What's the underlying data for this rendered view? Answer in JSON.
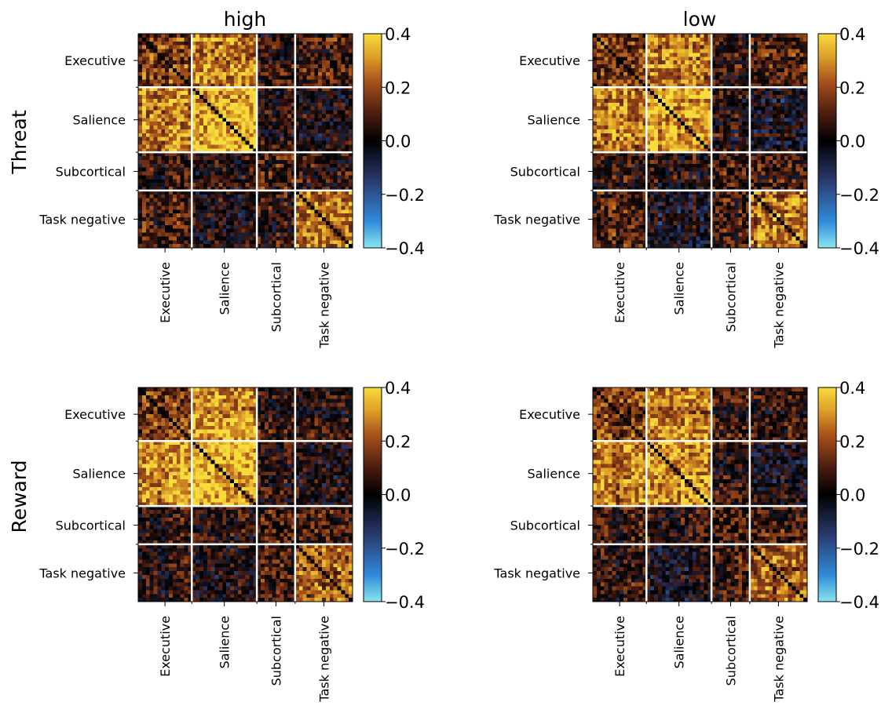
{
  "chart_data": {
    "type": "heatmap",
    "column_titles": [
      "high",
      "low"
    ],
    "row_titles": [
      "Threat",
      "Reward"
    ],
    "network_labels": [
      "Executive",
      "Salience",
      "Subcortical",
      "Task negative"
    ],
    "network_sizes": [
      14,
      17,
      10,
      15
    ],
    "matrix_size": 56,
    "colorbar": {
      "vmin": -0.4,
      "vmax": 0.4,
      "ticks": [
        0.4,
        0.2,
        0.0,
        -0.2,
        -0.4
      ],
      "tick_labels": [
        "0.4",
        "0.2",
        "0.0",
        "−0.2",
        "−0.4"
      ],
      "colormap": [
        {
          "v": -0.4,
          "color": "#8ae6ef"
        },
        {
          "v": -0.3,
          "color": "#2f8ad8"
        },
        {
          "v": -0.15,
          "color": "#2a3a6e"
        },
        {
          "v": 0.0,
          "color": "#000000"
        },
        {
          "v": 0.1,
          "color": "#4a1c12"
        },
        {
          "v": 0.22,
          "color": "#a6501a"
        },
        {
          "v": 0.32,
          "color": "#e0a42a"
        },
        {
          "v": 0.4,
          "color": "#f7dc3c"
        }
      ]
    },
    "grid": false,
    "block_mean_correlations": [
      {
        "condition": "Threat",
        "group": "high",
        "blocks": [
          [
            0.17,
            0.27,
            0.05,
            0.08
          ],
          [
            0.27,
            0.35,
            0.03,
            0.01
          ],
          [
            0.05,
            0.03,
            0.09,
            0.07
          ],
          [
            0.08,
            0.01,
            0.07,
            0.26
          ]
        ]
      },
      {
        "condition": "Threat",
        "group": "low",
        "blocks": [
          [
            0.17,
            0.27,
            0.06,
            0.1
          ],
          [
            0.27,
            0.34,
            0.04,
            -0.02
          ],
          [
            0.06,
            0.04,
            0.1,
            0.08
          ],
          [
            0.1,
            -0.02,
            0.08,
            0.25
          ]
        ]
      },
      {
        "condition": "Reward",
        "group": "high",
        "blocks": [
          [
            0.17,
            0.3,
            0.06,
            0.05
          ],
          [
            0.3,
            0.35,
            0.05,
            0.01
          ],
          [
            0.06,
            0.05,
            0.09,
            0.08
          ],
          [
            0.05,
            0.01,
            0.08,
            0.24
          ]
        ]
      },
      {
        "condition": "Reward",
        "group": "low",
        "blocks": [
          [
            0.17,
            0.27,
            0.06,
            0.06
          ],
          [
            0.27,
            0.32,
            0.05,
            0.0
          ],
          [
            0.06,
            0.05,
            0.09,
            0.08
          ],
          [
            0.06,
            0.0,
            0.08,
            0.24
          ]
        ]
      }
    ]
  }
}
